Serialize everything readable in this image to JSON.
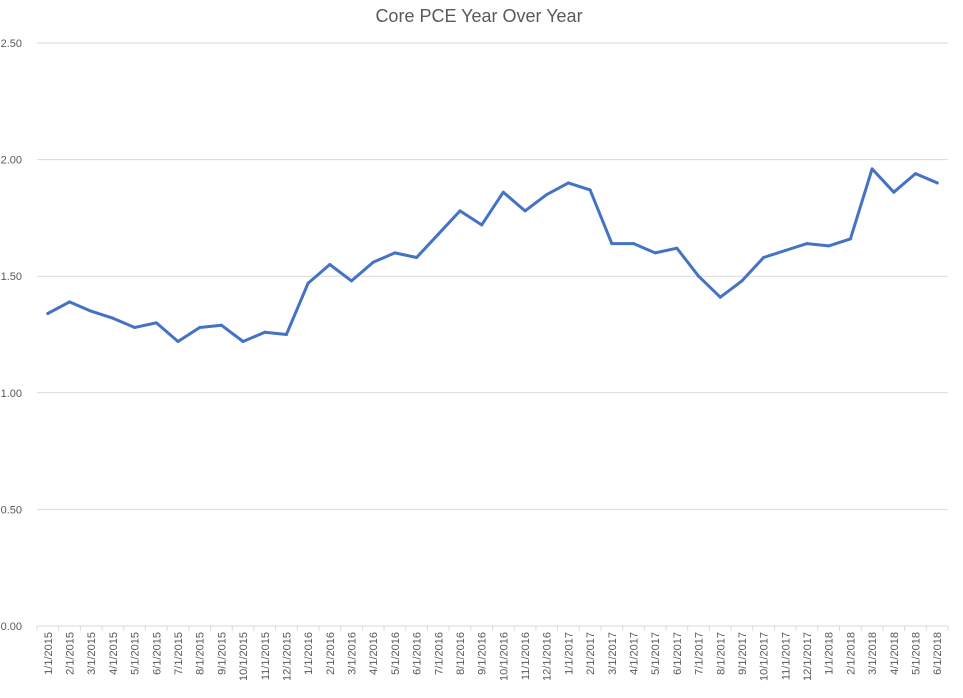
{
  "chart_data": {
    "type": "line",
    "title": "Core PCE Year Over Year",
    "xlabel": "",
    "ylabel": "",
    "ylim": [
      0,
      2.5
    ],
    "yticks": [
      "0.00",
      "0.50",
      "1.00",
      "1.50",
      "2.00",
      "2.50"
    ],
    "grid": true,
    "legend": "none",
    "line_color": "#4472C4",
    "categories": [
      "1/1/2015",
      "2/1/2015",
      "3/1/2015",
      "4/1/2015",
      "5/1/2015",
      "6/1/2015",
      "7/1/2015",
      "8/1/2015",
      "9/1/2015",
      "10/1/2015",
      "11/1/2015",
      "12/1/2015",
      "1/1/2016",
      "2/1/2016",
      "3/1/2016",
      "4/1/2016",
      "5/1/2016",
      "6/1/2016",
      "7/1/2016",
      "8/1/2016",
      "9/1/2016",
      "10/1/2016",
      "11/1/2016",
      "12/1/2016",
      "1/1/2017",
      "2/1/2017",
      "3/1/2017",
      "4/1/2017",
      "5/1/2017",
      "6/1/2017",
      "7/1/2017",
      "8/1/2017",
      "9/1/2017",
      "10/1/2017",
      "11/1/2017",
      "12/1/2017",
      "1/1/2018",
      "2/1/2018",
      "3/1/2018",
      "4/1/2018",
      "5/1/2018",
      "6/1/2018"
    ],
    "series": [
      {
        "values": [
          1.34,
          1.39,
          1.35,
          1.32,
          1.28,
          1.3,
          1.22,
          1.28,
          1.29,
          1.22,
          1.26,
          1.25,
          1.47,
          1.55,
          1.48,
          1.56,
          1.6,
          1.58,
          1.68,
          1.78,
          1.72,
          1.86,
          1.78,
          1.85,
          1.9,
          1.87,
          1.64,
          1.64,
          1.6,
          1.62,
          1.5,
          1.41,
          1.48,
          1.58,
          1.61,
          1.64,
          1.63,
          1.66,
          1.96,
          1.86,
          1.94,
          1.9
        ]
      }
    ]
  }
}
